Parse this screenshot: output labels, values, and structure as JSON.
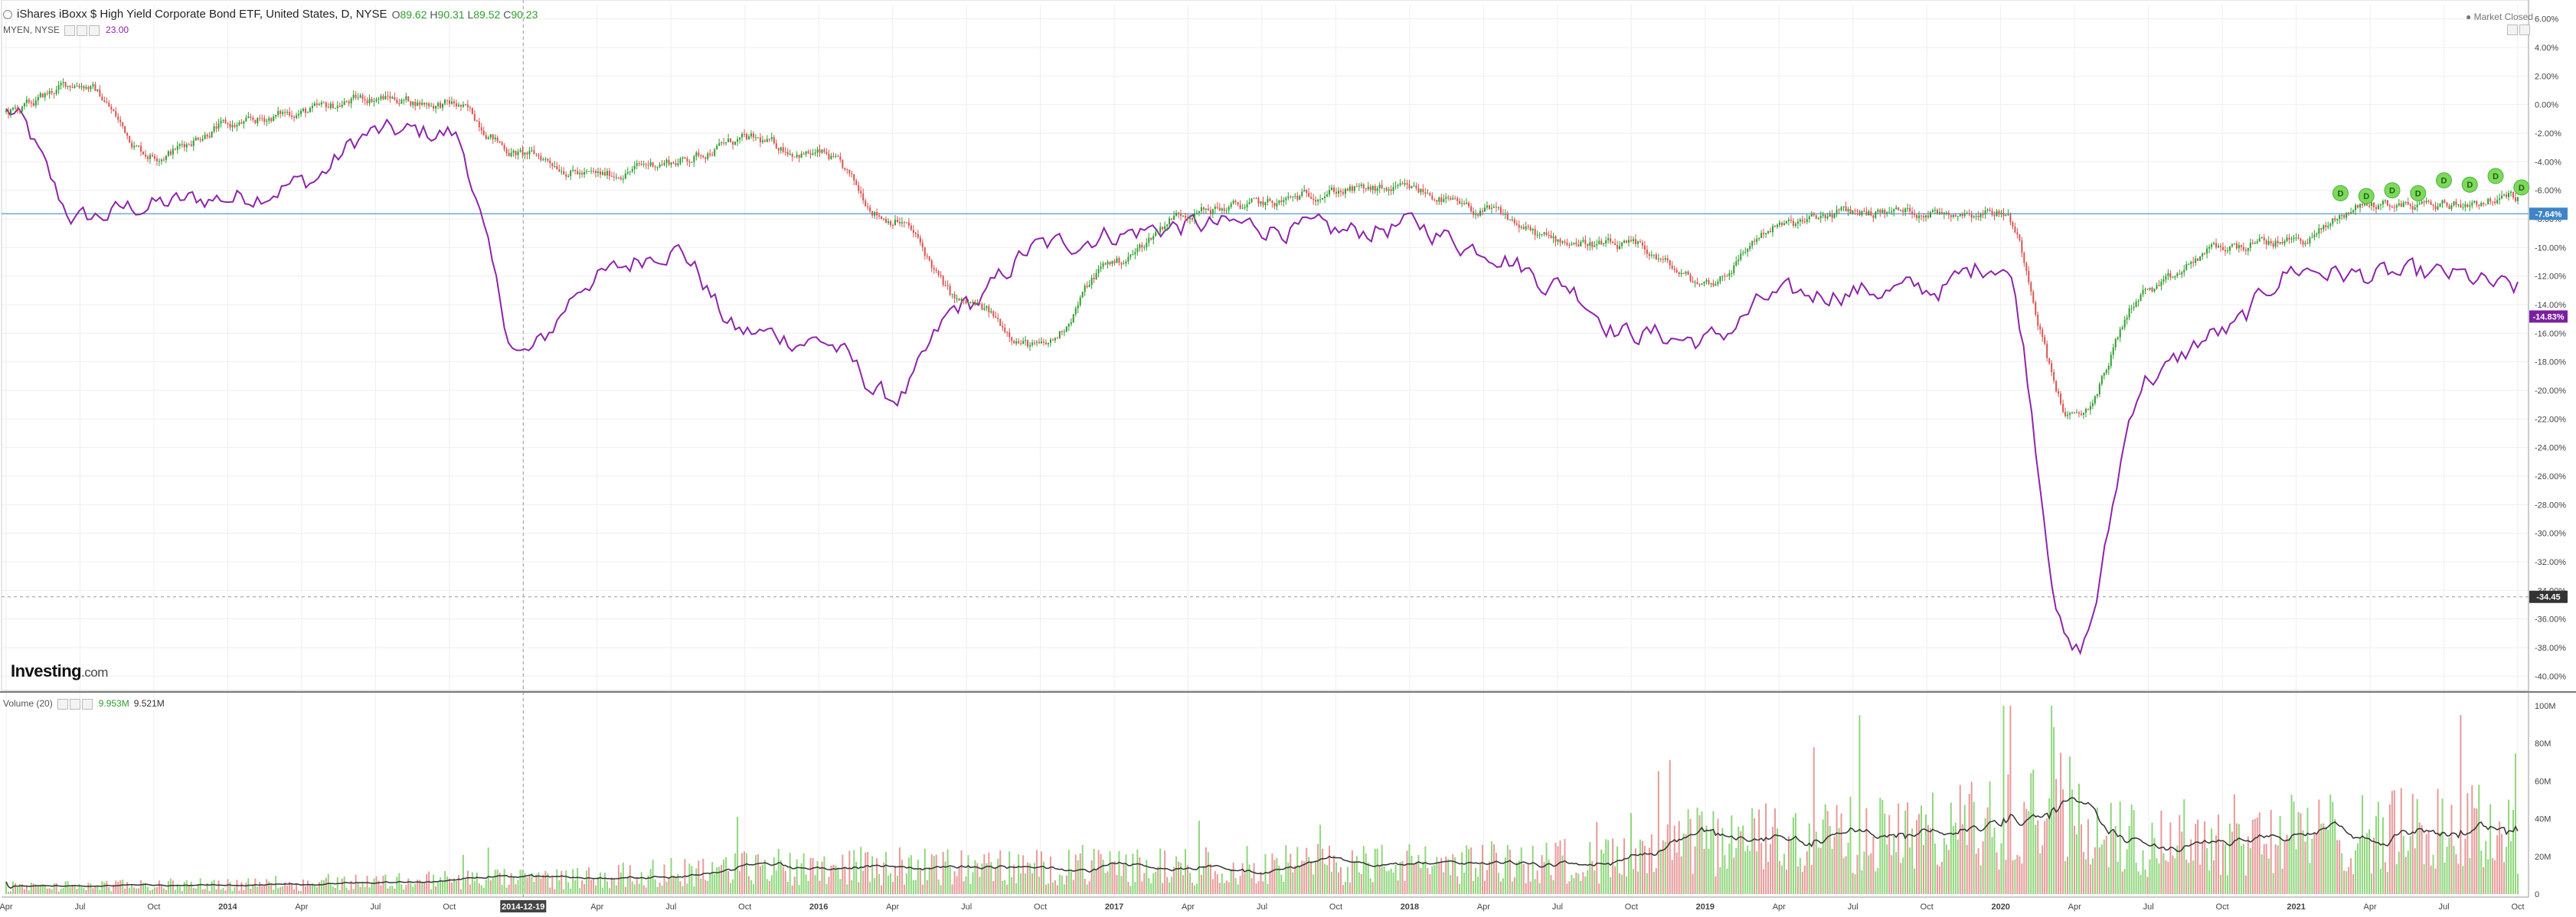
{
  "header": {
    "symbol_title": "iShares iBoxx $ High Yield Corporate Bond ETF, United States, D, NYSE",
    "open_label": "O",
    "open": "89.62",
    "high_label": "H",
    "high": "90.31",
    "low_label": "L",
    "low": "89.52",
    "close_label": "C",
    "close": "90.23",
    "compare_symbol": "MYEN, NYSE",
    "compare_value": "23.00",
    "market_status": "Market Closed"
  },
  "volume_legend": {
    "label": "Volume (20)",
    "value1": "9.953M",
    "value2": "9.521M"
  },
  "watermark": {
    "brand": "Investing",
    "suffix": ".com"
  },
  "colors": {
    "up": "#2e9e2e",
    "down": "#d9534f",
    "compare": "#8e24aa",
    "hline": "#6fa8dc",
    "vol_up": "#8fd77c",
    "vol_down": "#e79a9a",
    "vol_ma": "#333333",
    "dividend": "#7ed957"
  },
  "chart_data": [
    {
      "type": "line",
      "title": "",
      "x_ticks": [
        "Apr",
        "Jul",
        "Oct",
        "2014",
        "Apr",
        "Jul",
        "Oct",
        "2014-12-19",
        "Apr",
        "Jul",
        "Oct",
        "2016",
        "Apr",
        "Jul",
        "Oct",
        "2017",
        "Apr",
        "Jul",
        "Oct",
        "2018",
        "Apr",
        "Jul",
        "Oct",
        "2019",
        "Apr",
        "Jul",
        "Oct",
        "2020",
        "Apr",
        "Jul",
        "Oct",
        "2021",
        "Apr",
        "Jul",
        "Oct"
      ],
      "crosshair_date": "2014-12-19",
      "ylim": [
        -41,
        7
      ],
      "y_ticks": [
        "6.00%",
        "4.00%",
        "2.00%",
        "0.00%",
        "-2.00%",
        "-4.00%",
        "-6.00%",
        "-8.00%",
        "-10.00%",
        "-12.00%",
        "-14.00%",
        "-16.00%",
        "-18.00%",
        "-20.00%",
        "-22.00%",
        "-24.00%",
        "-26.00%",
        "-28.00%",
        "-30.00%",
        "-32.00%",
        "-34.00%",
        "-36.00%",
        "-38.00%",
        "-40.00%"
      ],
      "y_tick_values": [
        6,
        4,
        2,
        0,
        -2,
        -4,
        -6,
        -8,
        -10,
        -12,
        -14,
        -16,
        -18,
        -20,
        -22,
        -24,
        -26,
        -28,
        -30,
        -32,
        -34,
        -36,
        -38,
        -40
      ],
      "series": [
        {
          "kind": "candles",
          "anchors_x": [
            0,
            1,
            2,
            3,
            4,
            5,
            6,
            7,
            8,
            9,
            10,
            11,
            12,
            13,
            14,
            15,
            16,
            17,
            18,
            19,
            20,
            21,
            22,
            23,
            24,
            25,
            26,
            27,
            28,
            29,
            30,
            31,
            32,
            33,
            34
          ],
          "anchors_y": [
            -0.5,
            1.5,
            -3.5,
            -1.5,
            -0.5,
            0.5,
            0.0,
            -3.5,
            -5.0,
            -4.0,
            -2.5,
            -3.5,
            -8.0,
            -14.0,
            -17.0,
            -11.0,
            -7.5,
            -7.0,
            -6.0,
            -6.0,
            -7.5,
            -9.5,
            -10.0,
            -12.5,
            -8.5,
            -7.5,
            -7.5,
            -7.5,
            -22.0,
            -13.0,
            -10.0,
            -9.5,
            -7.0,
            -7.0,
            -6.5
          ]
        },
        {
          "kind": "line",
          "anchors_x": [
            0,
            1,
            2,
            3,
            4,
            5,
            6,
            7,
            8,
            9,
            10,
            11,
            12,
            13,
            14,
            15,
            16,
            17,
            18,
            19,
            20,
            21,
            22,
            23,
            24,
            25,
            26,
            27,
            28,
            29,
            30,
            31,
            32,
            33,
            34
          ],
          "anchors_y": [
            -0.5,
            -8.0,
            -7.0,
            -6.5,
            -5.5,
            -2.0,
            -2.0,
            -17.5,
            -12.0,
            -10.0,
            -16.0,
            -16.5,
            -20.5,
            -14.0,
            -10.0,
            -9.0,
            -8.5,
            -8.5,
            -9.0,
            -8.5,
            -10.0,
            -12.5,
            -16.0,
            -16.5,
            -13.5,
            -13.0,
            -13.0,
            -11.0,
            -38.5,
            -19.0,
            -16.0,
            -11.5,
            -12.0,
            -12.0,
            -13.0
          ]
        }
      ],
      "current_labels": [
        "-7.64%",
        "-14.83%",
        "-34.45"
      ],
      "current_values": [
        -7.64,
        -14.83,
        -34.45
      ],
      "dividend_marker_label": "D",
      "dividend_marker_x": [
        31.6,
        31.95,
        32.3,
        32.65,
        33.0,
        33.35,
        33.7,
        34.05
      ],
      "dividend_marker_y": [
        -6.2,
        -6.4,
        -6.0,
        -6.2,
        -5.3,
        -5.6,
        -5.0,
        -5.8
      ]
    },
    {
      "type": "bar",
      "title": "Volume (20)",
      "ylim": [
        0,
        100
      ],
      "y_ticks": [
        "100M",
        "80M",
        "60M",
        "40M",
        "20M",
        "0"
      ],
      "y_tick_values": [
        100,
        80,
        60,
        40,
        20,
        0
      ],
      "ylabel": "",
      "volume_anchors_x": [
        0,
        3,
        7,
        11,
        14,
        19,
        22,
        23,
        26,
        27,
        27.7,
        28.2,
        29,
        31,
        34
      ],
      "volume_anchors_y": [
        4,
        5,
        8,
        15,
        14,
        16,
        18,
        28,
        32,
        38,
        65,
        30,
        30,
        32,
        35
      ]
    }
  ]
}
